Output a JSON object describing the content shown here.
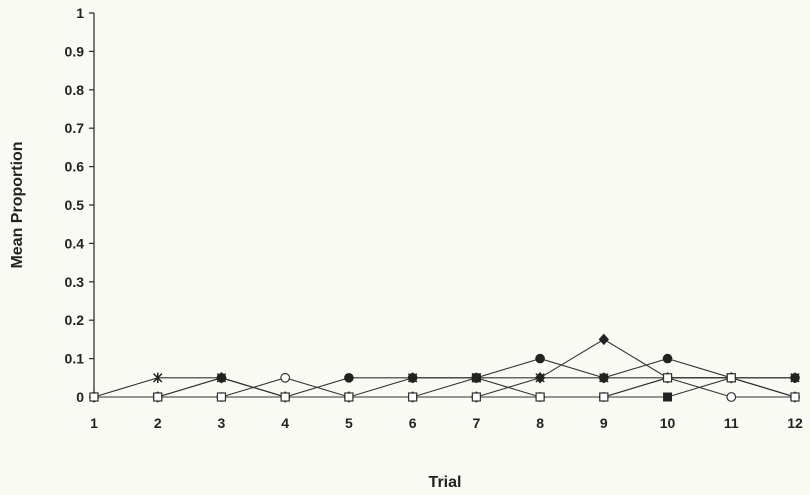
{
  "chart_data": {
    "type": "line",
    "xlabel": "Trial",
    "ylabel": "Mean Proportion",
    "x": [
      1,
      2,
      3,
      4,
      5,
      6,
      7,
      8,
      9,
      10,
      11,
      12
    ],
    "ylim": [
      0,
      1
    ],
    "xlim": [
      1,
      12
    ],
    "yticks": [
      "0",
      "0.1",
      "0.2",
      "0.3",
      "0.4",
      "0.5",
      "0.6",
      "0.7",
      "0.8",
      "0.9",
      "1"
    ],
    "xticks": [
      "1",
      "2",
      "3",
      "4",
      "5",
      "6",
      "7",
      "8",
      "9",
      "10",
      "11",
      "12"
    ],
    "grid": false,
    "series": [
      {
        "marker": "filled-circle",
        "values": [
          0,
          0,
          0.05,
          0,
          0.05,
          0.05,
          0.05,
          0.1,
          0.05,
          0.1,
          0.05,
          0.05
        ]
      },
      {
        "marker": "open-circle",
        "values": [
          0,
          0,
          0,
          0.05,
          0,
          0,
          0,
          0,
          0,
          0.05,
          0,
          0
        ]
      },
      {
        "marker": "filled-diamond",
        "values": [
          0,
          0,
          0.05,
          0,
          0,
          0,
          0,
          0.05,
          0.15,
          0.05,
          0.05,
          0
        ]
      },
      {
        "marker": "filled-square",
        "values": [
          0,
          0,
          0,
          0,
          0,
          0,
          0.05,
          0,
          0,
          0,
          0.05,
          0
        ]
      },
      {
        "marker": "star",
        "values": [
          0,
          0.05,
          0.05,
          0,
          0,
          0.05,
          0.05,
          0.05,
          0.05,
          0.05,
          0.05,
          0.05
        ]
      },
      {
        "marker": "open-square",
        "values": [
          0,
          0,
          0,
          0,
          0,
          0,
          0,
          0,
          0,
          0.05,
          0.05,
          0
        ]
      }
    ]
  }
}
